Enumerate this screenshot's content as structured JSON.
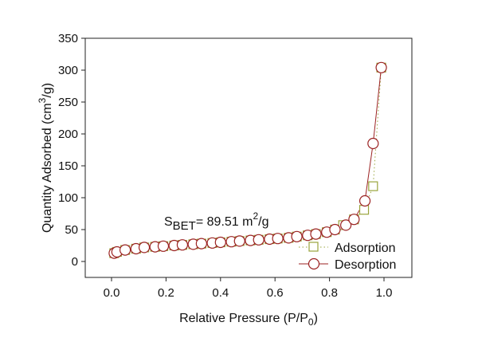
{
  "chart_data": {
    "type": "scatter",
    "xlabel": "Relative Pressure (P/P",
    "xlabel_sub": "0",
    "xlabel_end": ")",
    "ylabel": "Quantity Adsorbed (cm",
    "ylabel_sup": "3",
    "ylabel_end": "/g)",
    "xlim": [
      -0.1,
      1.1
    ],
    "ylim": [
      -25,
      350
    ],
    "xticks": [
      "0.0",
      "0.2",
      "0.4",
      "0.6",
      "0.8",
      "1.0"
    ],
    "xtick_values": [
      0,
      0.2,
      0.4,
      0.6,
      0.8,
      1.0
    ],
    "yticks": [
      "0",
      "50",
      "100",
      "150",
      "200",
      "250",
      "300",
      "350"
    ],
    "ytick_values": [
      0,
      50,
      100,
      150,
      200,
      250,
      300,
      350
    ],
    "annotation": {
      "s": "S",
      "sub": "BET",
      "text": "= 89.51 m",
      "sup": "2",
      "end": "/g",
      "x": 0.2,
      "y": 60
    },
    "legend_position": "bottom-right",
    "series": [
      {
        "name": "Adsorption",
        "marker": "square",
        "line": "dotted",
        "color": "#9aa43c",
        "x": [
          0.01,
          0.02,
          0.05,
          0.09,
          0.12,
          0.16,
          0.19,
          0.23,
          0.26,
          0.3,
          0.33,
          0.37,
          0.4,
          0.44,
          0.47,
          0.51,
          0.54,
          0.58,
          0.61,
          0.65,
          0.68,
          0.72,
          0.75,
          0.79,
          0.82,
          0.85,
          0.89,
          0.927,
          0.96,
          0.99
        ],
        "y": [
          13,
          15,
          18,
          20,
          22,
          23,
          24,
          25,
          26,
          27,
          28,
          29,
          30,
          31,
          32,
          33,
          34,
          35,
          36,
          37,
          39,
          41,
          43,
          46,
          50,
          57,
          66,
          81,
          118,
          304
        ]
      },
      {
        "name": "Desorption",
        "marker": "circle",
        "line": "solid",
        "color": "#9b2222",
        "x": [
          0.01,
          0.02,
          0.05,
          0.09,
          0.12,
          0.16,
          0.19,
          0.23,
          0.26,
          0.3,
          0.33,
          0.37,
          0.4,
          0.44,
          0.47,
          0.51,
          0.54,
          0.58,
          0.61,
          0.65,
          0.68,
          0.72,
          0.75,
          0.79,
          0.82,
          0.86,
          0.89,
          0.93,
          0.96,
          0.99
        ],
        "y": [
          13,
          15,
          18,
          20,
          22,
          23,
          24,
          25,
          26,
          27,
          28,
          29,
          30,
          31,
          32,
          33,
          34,
          35,
          36,
          37,
          39,
          41,
          43,
          46,
          50,
          57,
          66,
          95,
          185,
          304
        ]
      }
    ]
  }
}
